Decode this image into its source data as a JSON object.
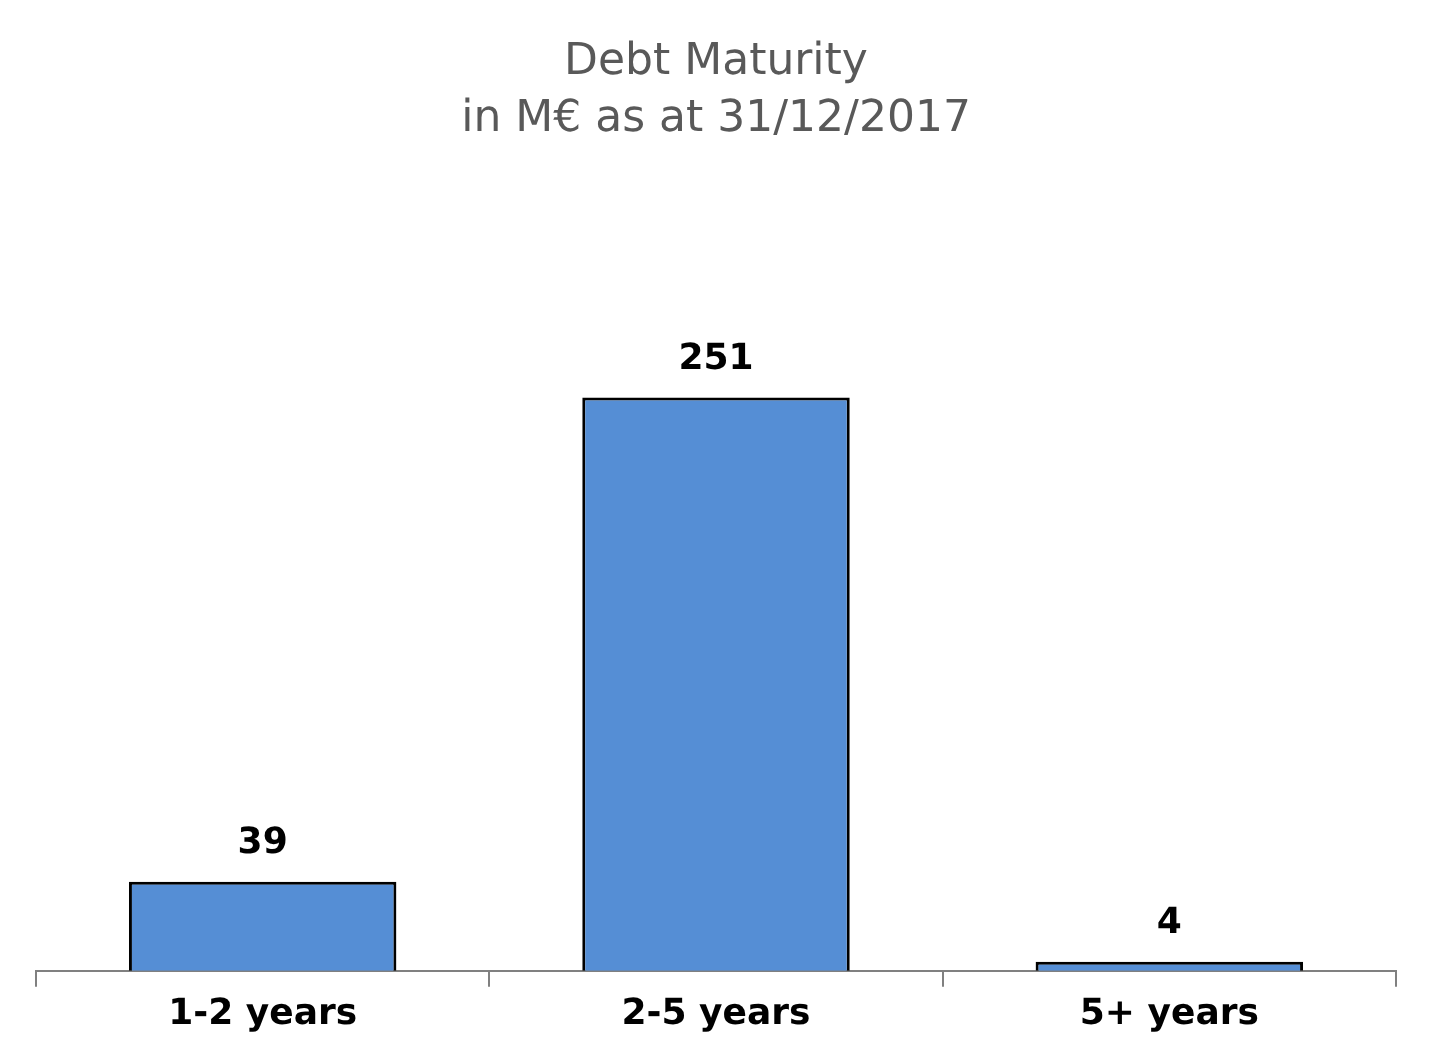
{
  "chart_data": {
    "type": "bar",
    "title": "Debt Maturity",
    "subtitle": "in M€ as at 31/12/2017",
    "categories": [
      "1-2 years",
      "2-5 years",
      "5+ years"
    ],
    "values": [
      39,
      251,
      4
    ],
    "color": "#558ed5",
    "data_labels": true,
    "grid": false,
    "legend": false
  }
}
